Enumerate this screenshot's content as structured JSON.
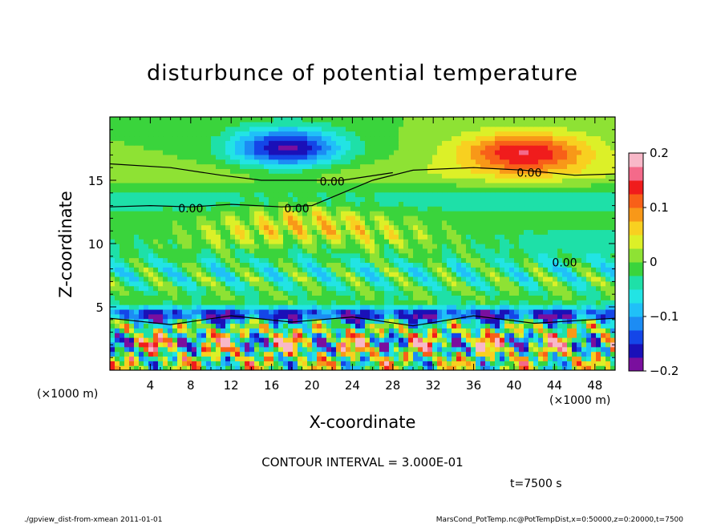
{
  "chart_data": {
    "type": "heatmap",
    "title": "disturbunce of potential temperature",
    "xlabel": "X-coordinate",
    "ylabel": "Z-coordinate",
    "x_unit_label": "(×1000 m)",
    "y_unit_label": "(×1000 m)",
    "xlim": [
      0,
      50
    ],
    "ylim": [
      0,
      20
    ],
    "x_ticks": [
      4,
      8,
      12,
      16,
      20,
      24,
      28,
      32,
      36,
      40,
      44,
      48
    ],
    "y_ticks": [
      5,
      10,
      15
    ],
    "colorbar": {
      "range": [
        -0.2,
        0.2
      ],
      "ticks": [
        {
          "value": 0.2,
          "label": "0.2"
        },
        {
          "value": 0.1,
          "label": "0.1"
        },
        {
          "value": 0,
          "label": "0"
        },
        {
          "value": -0.1,
          "label": "−0.1"
        },
        {
          "value": -0.2,
          "label": "−0.2"
        }
      ],
      "colors": [
        "#7a0f9e",
        "#1a10b8",
        "#1446e8",
        "#1c8cf4",
        "#20c0f8",
        "#22e4e4",
        "#1ee0a8",
        "#3ad43c",
        "#8ee234",
        "#dcf028",
        "#f8d020",
        "#f89818",
        "#f86018",
        "#f01c1c",
        "#f46a8a",
        "#f8b8c8"
      ]
    },
    "contour_labels": [
      {
        "x": 8.0,
        "y": 12.8,
        "text": "0.00"
      },
      {
        "x": 18.5,
        "y": 12.8,
        "text": "0.00"
      },
      {
        "x": 22.0,
        "y": 14.9,
        "text": "0.00"
      },
      {
        "x": 41.5,
        "y": 15.6,
        "text": "0.00"
      },
      {
        "x": 45.0,
        "y": 8.5,
        "text": "0.00"
      }
    ],
    "features": [
      {
        "x": 17,
        "y": 17.5,
        "value": -0.17
      },
      {
        "x": 41,
        "y": 17.2,
        "value": 0.14
      },
      {
        "x": 19,
        "y": 11.0,
        "value": 0.2
      },
      {
        "x": 7,
        "y": 1.5,
        "value": 0.2
      },
      {
        "x": 30,
        "y": 4.2,
        "value": -0.2
      }
    ],
    "contour_interval_text": "CONTOUR INTERVAL = 3.000E-01",
    "time_text": "t=7500 s"
  },
  "footer": {
    "left": "./gpview_dist-from-xmean  2011-01-01",
    "right": "MarsCond_PotTemp.nc@PotTempDist,x=0:50000,z=0:20000,t=7500"
  }
}
